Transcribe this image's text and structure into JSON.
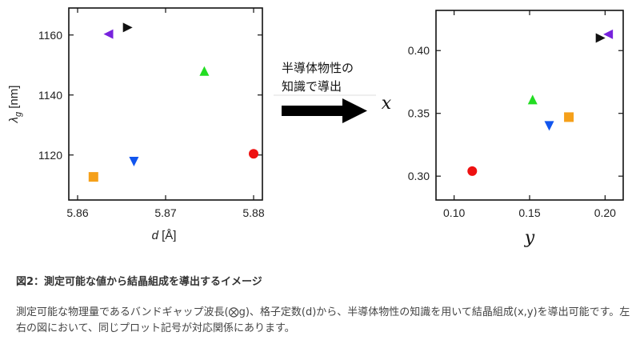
{
  "arrow_label": [
    "半導体物性の",
    "知識で導出"
  ],
  "caption": {
    "title": "図2：測定可能な値から結晶組成を導出するイメージ",
    "body": "測定可能な物理量であるバンドギャップ波長(⨂g)、格子定数(d)から、半導体物性の知識を用いて結晶組成(x,y)を導出可能です。左右の図において、同じプロット記号が対応関係にあります。"
  },
  "colors": {
    "red": "#ee1111",
    "orange": "#f5a01a",
    "blue": "#1155ee",
    "green": "#22dd22",
    "black": "#111111",
    "purple": "#7722dd"
  },
  "chart_data": [
    {
      "type": "scatter",
      "xlabel_prefix": "d",
      "xlabel_unit": "[Å]",
      "ylabel_symbol": "λ",
      "ylabel_sub": "g",
      "ylabel_unit": "[nm]",
      "xlim": [
        5.859,
        5.881
      ],
      "ylim": [
        1105,
        1169
      ],
      "xticks": [
        "5.86",
        "5.87",
        "5.88"
      ],
      "yticks": [
        "1120",
        "1140",
        "1160"
      ],
      "grid": false,
      "points": [
        {
          "x": 5.8618,
          "y": 1112.7,
          "marker": "square",
          "color": "orange"
        },
        {
          "x": 5.8635,
          "y": 1160.3,
          "marker": "triangle-left",
          "color": "purple"
        },
        {
          "x": 5.8657,
          "y": 1162.5,
          "marker": "triangle-right",
          "color": "black"
        },
        {
          "x": 5.8664,
          "y": 1117.8,
          "marker": "triangle-down",
          "color": "blue"
        },
        {
          "x": 5.8744,
          "y": 1148.0,
          "marker": "triangle-up",
          "color": "green"
        },
        {
          "x": 5.88,
          "y": 1120.4,
          "marker": "circle",
          "color": "red"
        }
      ]
    },
    {
      "type": "scatter",
      "xlabel": "y",
      "ylabel": "x",
      "xlim": [
        0.088,
        0.212
      ],
      "ylim": [
        0.281,
        0.432
      ],
      "xticks": [
        "0.10",
        "0.15",
        "0.20"
      ],
      "yticks": [
        "0.30",
        "0.35",
        "0.40"
      ],
      "grid": false,
      "points": [
        {
          "x": 0.112,
          "y": 0.304,
          "marker": "circle",
          "color": "red"
        },
        {
          "x": 0.152,
          "y": 0.361,
          "marker": "triangle-up",
          "color": "green"
        },
        {
          "x": 0.163,
          "y": 0.34,
          "marker": "triangle-down",
          "color": "blue"
        },
        {
          "x": 0.176,
          "y": 0.347,
          "marker": "square",
          "color": "orange"
        },
        {
          "x": 0.197,
          "y": 0.41,
          "marker": "triangle-right",
          "color": "black"
        },
        {
          "x": 0.202,
          "y": 0.413,
          "marker": "triangle-left",
          "color": "purple"
        }
      ]
    }
  ]
}
